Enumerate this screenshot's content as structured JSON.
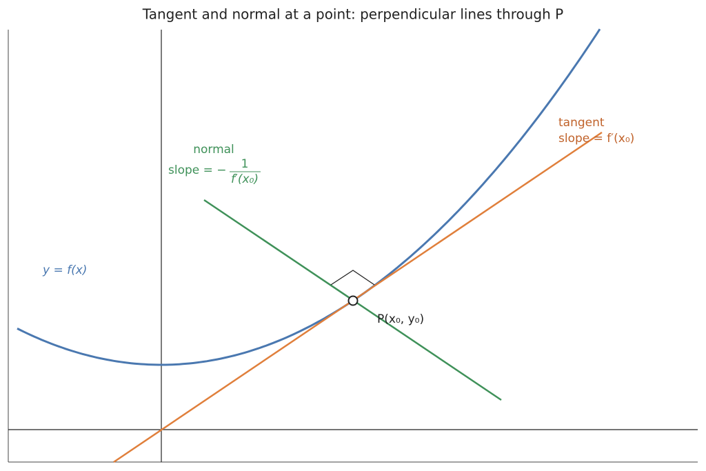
{
  "title": "Tangent and normal at a point: perpendicular lines through P",
  "curve_label": "y = f(x)",
  "normal_label": {
    "name": "normal",
    "slope_prefix": "slope = −",
    "numerator": "1",
    "denominator": "f′(x₀)"
  },
  "tangent_label": {
    "name": "tangent",
    "slope": "slope = f′(x₀)"
  },
  "point_label": "P(x₀, y₀)"
}
